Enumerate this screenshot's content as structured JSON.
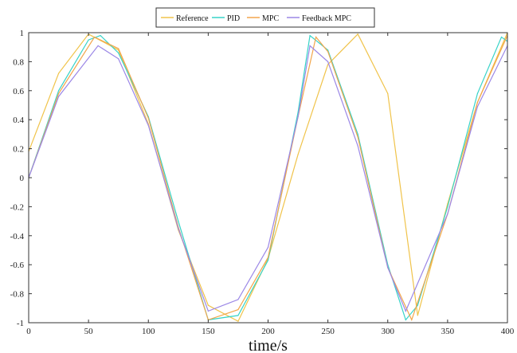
{
  "chart_data": {
    "type": "line",
    "xlabel": "time/s",
    "ylabel": "",
    "xlim": [
      0,
      400
    ],
    "ylim": [
      -1,
      1
    ],
    "xticks": [
      0,
      50,
      100,
      150,
      200,
      250,
      300,
      350,
      400
    ],
    "yticks": [
      1,
      0.8,
      0.6,
      0.4,
      0.2,
      0,
      -0.2,
      -0.4,
      -0.6,
      -0.8,
      -1
    ],
    "grid": false,
    "legend_position": "top-center",
    "series": [
      {
        "name": "Reference",
        "color": "#f0c34a",
        "x": [
          0,
          25,
          50,
          75,
          100,
          125,
          150,
          175,
          200,
          225,
          250,
          275,
          300,
          325,
          350,
          375,
          400
        ],
        "y": [
          0.18,
          0.72,
          0.99,
          0.88,
          0.37,
          -0.36,
          -0.88,
          -0.99,
          -0.56,
          0.16,
          0.78,
          0.99,
          0.58,
          -0.95,
          -0.18,
          0.52,
          1.0
        ]
      },
      {
        "name": "PID",
        "color": "#37d3c8",
        "x": [
          0,
          25,
          50,
          60,
          75,
          100,
          125,
          150,
          175,
          200,
          225,
          235,
          250,
          275,
          300,
          315,
          325,
          350,
          375,
          395,
          400
        ],
        "y": [
          0.0,
          0.6,
          0.95,
          0.98,
          0.86,
          0.42,
          -0.3,
          -0.98,
          -0.95,
          -0.57,
          0.45,
          0.98,
          0.88,
          0.3,
          -0.6,
          -0.98,
          -0.88,
          -0.2,
          0.58,
          0.97,
          0.94
        ]
      },
      {
        "name": "MPC",
        "color": "#f2a64c",
        "x": [
          0,
          25,
          55,
          75,
          100,
          125,
          150,
          175,
          200,
          225,
          240,
          250,
          275,
          300,
          320,
          350,
          375,
          400
        ],
        "y": [
          0.0,
          0.58,
          0.97,
          0.89,
          0.41,
          -0.34,
          -0.98,
          -0.91,
          -0.55,
          0.42,
          0.97,
          0.87,
          0.28,
          -0.62,
          -0.98,
          -0.25,
          0.52,
          0.98
        ]
      },
      {
        "name": "Feedback MPC",
        "color": "#9b87e6",
        "x": [
          0,
          25,
          58,
          75,
          100,
          125,
          150,
          175,
          200,
          225,
          235,
          250,
          275,
          300,
          315,
          350,
          375,
          400
        ],
        "y": [
          0.0,
          0.56,
          0.91,
          0.82,
          0.36,
          -0.35,
          -0.92,
          -0.84,
          -0.48,
          0.42,
          0.91,
          0.8,
          0.22,
          -0.62,
          -0.92,
          -0.25,
          0.49,
          0.91
        ]
      }
    ]
  }
}
